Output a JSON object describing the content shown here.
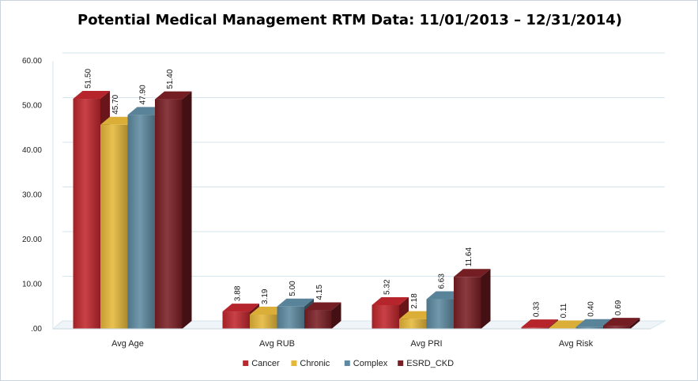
{
  "chart_data": {
    "type": "bar",
    "title": "Potential Medical Management RTM Data: 11/01/2013 – 12/31/2014)",
    "xlabel": "",
    "ylabel": "",
    "ylim": [
      0,
      60
    ],
    "yticks": [
      0,
      10,
      20,
      30,
      40,
      50,
      60
    ],
    "ytick_labels": [
      ".00",
      "10.00",
      "20.00",
      "30.00",
      "40.00",
      "50.00",
      "60.00"
    ],
    "grid": true,
    "legend_position": "bottom",
    "categories": [
      "Avg Age",
      "Avg RUB",
      "Avg PRI",
      "Avg Risk"
    ],
    "series": [
      {
        "name": "Cancer",
        "color": "#c0272d",
        "values": [
          51.5,
          3.88,
          5.32,
          0.33
        ],
        "labels": [
          "51.50",
          "3.88",
          "5.32",
          "0.33"
        ]
      },
      {
        "name": "Chronic",
        "color": "#e6b83a",
        "values": [
          45.7,
          3.19,
          2.18,
          0.11
        ],
        "labels": [
          "45.70",
          "3.19",
          "2.18",
          "0.11"
        ]
      },
      {
        "name": "Complex",
        "color": "#5e8aa1",
        "values": [
          47.9,
          5.0,
          6.63,
          0.4
        ],
        "labels": [
          "47.90",
          "5.00",
          "6.63",
          "0.40"
        ]
      },
      {
        "name": "ESRD_CKD",
        "color": "#7a1f24",
        "values": [
          51.4,
          4.15,
          11.64,
          0.69
        ],
        "labels": [
          "51.40",
          "4.15",
          "11.64",
          "0.69"
        ]
      }
    ]
  }
}
